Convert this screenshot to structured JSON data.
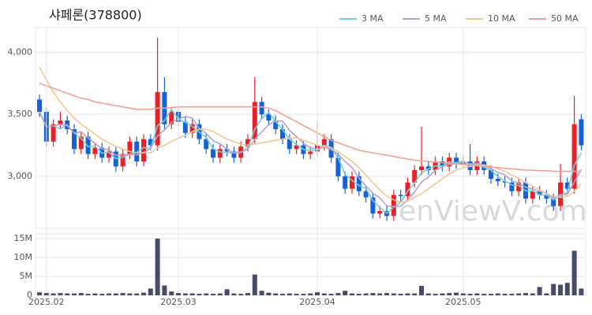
{
  "chart_data": [
    {
      "type": "candlestick",
      "title": "샤페론(378800)",
      "watermark": "enViewV.com",
      "up_color": "#e8202a",
      "down_color": "#1761d8",
      "open": [
        3620,
        3520,
        3280,
        3420,
        3450,
        3380,
        3220,
        3320,
        3180,
        3230,
        3150,
        3200,
        3080,
        3180,
        3280,
        3120,
        3300,
        3250,
        3680,
        3420,
        3520,
        3440,
        3350,
        3420,
        3300,
        3220,
        3150,
        3220,
        3200,
        3150,
        3240,
        3300,
        3600,
        3500,
        3450,
        3380,
        3300,
        3220,
        3250,
        3180,
        3200,
        3250,
        3300,
        3150,
        3000,
        2900,
        3000,
        2880,
        2830,
        2700,
        2720,
        2680,
        2850,
        2840,
        2950,
        3050,
        3080,
        3050,
        3120,
        3080,
        3150,
        3100,
        3120,
        3050,
        3120,
        3050,
        2980,
        2960,
        2950,
        2880,
        2950,
        2820,
        2880,
        2850,
        2820,
        2760,
        2950,
        2900,
        3460
      ],
      "high": [
        3660,
        3560,
        3460,
        3520,
        3490,
        3420,
        3360,
        3360,
        3270,
        3270,
        3240,
        3240,
        3220,
        3320,
        3320,
        3340,
        3340,
        4120,
        3800,
        3560,
        3560,
        3480,
        3460,
        3460,
        3340,
        3260,
        3260,
        3260,
        3240,
        3280,
        3340,
        3800,
        3640,
        3540,
        3490,
        3420,
        3340,
        3290,
        3290,
        3240,
        3450,
        3340,
        3340,
        3190,
        3040,
        3040,
        3040,
        2920,
        2870,
        2760,
        2760,
        2890,
        2890,
        2990,
        3090,
        3400,
        3120,
        3160,
        3160,
        3190,
        3190,
        3160,
        3260,
        3160,
        3160,
        3090,
        3020,
        3000,
        2990,
        2990,
        2990,
        2920,
        2920,
        2890,
        2860,
        3100,
        2990,
        3650,
        3500
      ],
      "low": [
        3480,
        3240,
        3240,
        3380,
        3340,
        3180,
        3180,
        3140,
        3140,
        3110,
        3110,
        3040,
        3040,
        3140,
        3080,
        3080,
        3210,
        3210,
        3380,
        3380,
        3400,
        3310,
        3310,
        3260,
        3180,
        3110,
        3110,
        3160,
        3110,
        3110,
        3200,
        3260,
        3460,
        3410,
        3340,
        3260,
        3180,
        3180,
        3140,
        3140,
        3160,
        3210,
        3110,
        2960,
        2860,
        2860,
        2840,
        2790,
        2660,
        2660,
        2640,
        2640,
        2800,
        2800,
        2910,
        3010,
        3010,
        3010,
        3040,
        3040,
        3060,
        3060,
        3010,
        3010,
        3010,
        2940,
        2920,
        2910,
        2840,
        2840,
        2780,
        2780,
        2810,
        2780,
        2720,
        2720,
        2860,
        2860,
        3210
      ],
      "close": [
        3520,
        3280,
        3420,
        3450,
        3380,
        3220,
        3320,
        3180,
        3230,
        3150,
        3200,
        3080,
        3180,
        3280,
        3120,
        3300,
        3250,
        3680,
        3420,
        3520,
        3440,
        3350,
        3420,
        3300,
        3220,
        3150,
        3220,
        3200,
        3150,
        3240,
        3300,
        3600,
        3500,
        3450,
        3380,
        3300,
        3220,
        3250,
        3180,
        3200,
        3250,
        3300,
        3150,
        3000,
        2900,
        3000,
        2880,
        2830,
        2700,
        2720,
        2680,
        2850,
        2840,
        2950,
        3050,
        3080,
        3050,
        3120,
        3080,
        3150,
        3100,
        3120,
        3050,
        3120,
        3050,
        2980,
        2960,
        2950,
        2880,
        2950,
        2820,
        2880,
        2850,
        2820,
        2760,
        2950,
        2900,
        3420,
        3250
      ],
      "series": [
        {
          "name": "3 MA",
          "color": "#6fd0d6",
          "values": [
            3520,
            3400,
            3407,
            3383,
            3417,
            3350,
            3307,
            3240,
            3243,
            3187,
            3193,
            3143,
            3153,
            3180,
            3193,
            3233,
            3223,
            3410,
            3450,
            3540,
            3460,
            3437,
            3403,
            3357,
            3313,
            3223,
            3197,
            3190,
            3190,
            3197,
            3230,
            3380,
            3467,
            3517,
            3443,
            3377,
            3300,
            3257,
            3217,
            3210,
            3210,
            3250,
            3233,
            3150,
            3017,
            2967,
            2927,
            2903,
            2803,
            2750,
            2700,
            2750,
            2790,
            2880,
            2947,
            3027,
            3060,
            3083,
            3083,
            3117,
            3110,
            3123,
            3090,
            3097,
            3073,
            3050,
            2997,
            2963,
            2930,
            2927,
            2883,
            2883,
            2850,
            2850,
            2810,
            2843,
            2870,
            3090,
            3190
          ]
        },
        {
          "name": "5 MA",
          "color": "#b8a2c8",
          "values": [
            3520,
            3400,
            3407,
            3418,
            3410,
            3350,
            3358,
            3310,
            3266,
            3220,
            3216,
            3168,
            3168,
            3178,
            3172,
            3192,
            3226,
            3326,
            3374,
            3434,
            3462,
            3482,
            3470,
            3386,
            3346,
            3288,
            3262,
            3218,
            3188,
            3192,
            3222,
            3298,
            3358,
            3418,
            3446,
            3446,
            3370,
            3320,
            3266,
            3230,
            3220,
            3236,
            3216,
            3180,
            3120,
            3070,
            2986,
            2922,
            2862,
            2826,
            2762,
            2756,
            2758,
            2808,
            2874,
            2954,
            2994,
            3050,
            3076,
            3096,
            3100,
            3114,
            3100,
            3108,
            3088,
            3064,
            3032,
            3012,
            2964,
            2944,
            2912,
            2896,
            2876,
            2864,
            2826,
            2852,
            2856,
            2954,
            3056
          ]
        },
        {
          "name": "10 MA",
          "color": "#f3c590",
          "values": [
            3880,
            3780,
            3680,
            3600,
            3530,
            3470,
            3420,
            3380,
            3340,
            3300,
            3270,
            3240,
            3220,
            3200,
            3190,
            3190,
            3190,
            3230,
            3250,
            3280,
            3310,
            3330,
            3360,
            3380,
            3380,
            3360,
            3330,
            3300,
            3280,
            3260,
            3250,
            3260,
            3270,
            3280,
            3290,
            3300,
            3310,
            3310,
            3290,
            3270,
            3250,
            3240,
            3230,
            3200,
            3160,
            3120,
            3070,
            3010,
            2950,
            2890,
            2840,
            2810,
            2790,
            2800,
            2830,
            2860,
            2900,
            2940,
            2980,
            3020,
            3050,
            3070,
            3080,
            3090,
            3090,
            3080,
            3060,
            3040,
            3010,
            2980,
            2950,
            2920,
            2890,
            2860,
            2840,
            2830,
            2840,
            2880,
            2940
          ]
        },
        {
          "name": "50 MA",
          "color": "#f4a090",
          "values": [
            3750,
            3730,
            3710,
            3690,
            3670,
            3650,
            3630,
            3620,
            3600,
            3590,
            3580,
            3570,
            3560,
            3550,
            3540,
            3540,
            3540,
            3550,
            3550,
            3555,
            3560,
            3560,
            3560,
            3560,
            3560,
            3560,
            3560,
            3560,
            3560,
            3560,
            3560,
            3560,
            3560,
            3550,
            3530,
            3500,
            3470,
            3440,
            3410,
            3380,
            3350,
            3320,
            3290,
            3270,
            3250,
            3230,
            3210,
            3200,
            3190,
            3180,
            3170,
            3160,
            3150,
            3140,
            3130,
            3125,
            3120,
            3115,
            3110,
            3105,
            3100,
            3095,
            3090,
            3085,
            3080,
            3075,
            3070,
            3065,
            3060,
            3055,
            3050,
            3050,
            3045,
            3045,
            3040,
            3040,
            3040,
            3040,
            3040
          ]
        }
      ],
      "ylim": [
        2580,
        4200
      ],
      "yticks": [
        {
          "value": 3000,
          "label": "3,000"
        },
        {
          "value": 3500,
          "label": "3,500"
        },
        {
          "value": 4000,
          "label": "4,000"
        }
      ],
      "grid": true
    },
    {
      "type": "bar",
      "color": "#474b68",
      "categories": [
        null,
        "2025.02",
        null,
        null,
        null,
        null,
        null,
        null,
        null,
        null,
        null,
        null,
        null,
        null,
        null,
        null,
        null,
        null,
        null,
        null,
        "2025.03",
        null,
        null,
        null,
        null,
        null,
        null,
        null,
        null,
        null,
        null,
        null,
        null,
        null,
        null,
        null,
        null,
        null,
        null,
        null,
        "2025.04",
        null,
        null,
        null,
        null,
        null,
        null,
        null,
        null,
        null,
        null,
        null,
        null,
        null,
        null,
        null,
        null,
        null,
        null,
        null,
        null,
        "2025.05",
        null,
        null,
        null,
        null,
        null,
        null,
        null,
        null,
        null,
        null,
        null,
        null,
        null,
        null,
        null,
        null,
        null
      ],
      "values": [
        800000,
        600000,
        500000,
        600000,
        500000,
        500000,
        600000,
        400000,
        500000,
        400000,
        500000,
        500000,
        600000,
        500000,
        500000,
        700000,
        1800000,
        15000000,
        2600000,
        1000000,
        600000,
        500000,
        500000,
        400000,
        500000,
        400000,
        500000,
        1600000,
        500000,
        400000,
        600000,
        5500000,
        1200000,
        700000,
        500000,
        400000,
        500000,
        400000,
        400000,
        500000,
        800000,
        500000,
        400000,
        600000,
        1200000,
        500000,
        400000,
        500000,
        600000,
        500000,
        600000,
        500000,
        400000,
        500000,
        500000,
        2500000,
        500000,
        400000,
        500000,
        600000,
        700000,
        500000,
        400000,
        500000,
        400000,
        400000,
        500000,
        400000,
        400000,
        500000,
        600000,
        500000,
        2200000,
        500000,
        3000000,
        2800000,
        3300000,
        11800000,
        1800000
      ],
      "ylim": [
        0,
        16250000
      ],
      "yticks": [
        0,
        {
          "value": 5000000,
          "label": "5M"
        },
        {
          "value": 10000000,
          "label": "10M"
        },
        {
          "value": 15000000,
          "label": "15M"
        }
      ],
      "grid": true
    }
  ]
}
